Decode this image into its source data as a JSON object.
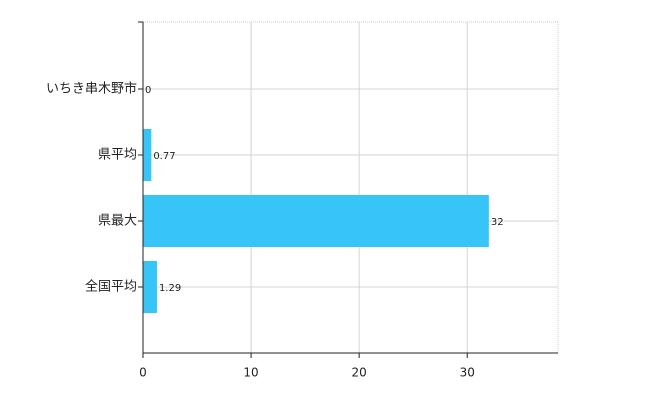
{
  "chart_data": {
    "type": "bar",
    "orientation": "horizontal",
    "categories": [
      "いちき串木野市",
      "県平均",
      "県最大",
      "全国平均"
    ],
    "values": [
      0,
      0.77,
      32,
      1.29
    ],
    "color": "#36c5f6",
    "xlim": [
      0,
      38.4
    ],
    "xticks": [
      0,
      10,
      20,
      30
    ],
    "grid": true
  }
}
